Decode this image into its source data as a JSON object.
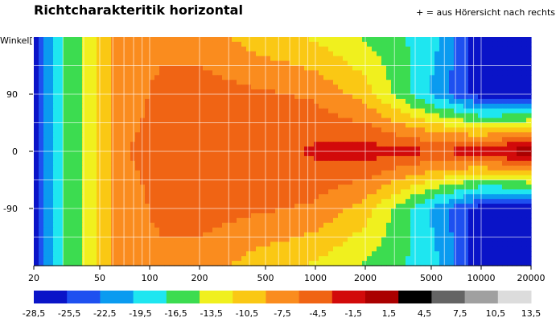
{
  "chart_data": {
    "type": "heatmap",
    "title": "Richtcharakteritik horizontal",
    "note": "+ = aus Hörersicht nach rechts",
    "ylabel": "Winkel[°]",
    "x_scale": "log",
    "xlim": [
      20,
      20000
    ],
    "ylim": [
      -180,
      180
    ],
    "x_ticks": [
      "20",
      "50",
      "100",
      "200",
      "500",
      "1000",
      "2000",
      "5000",
      "10000",
      "20000"
    ],
    "y_ticks": [
      "90",
      "0",
      "-90"
    ],
    "colorbar": {
      "labels": [
        "-28,5",
        "-25,5",
        "-22,5",
        "-19,5",
        "-16,5",
        "-13,5",
        "-10,5",
        "-7,5",
        "-4,5",
        "-1,5",
        "1,5",
        "4,5",
        "7,5",
        "10,5",
        "13,5"
      ],
      "colors": [
        "#0a14c8",
        "#1e50f0",
        "#0a9bf0",
        "#1ee6f0",
        "#3cdc50",
        "#f0f01e",
        "#fac814",
        "#fa8c1e",
        "#f06414",
        "#d20a0a",
        "#aa0000",
        "#000000",
        "#646464",
        "#a0a0a0",
        "#dcdcdc"
      ]
    },
    "levels_db": [
      {
        "hz": 20,
        "by_angle": {
          "0": -28,
          "90": -28,
          "180": -28
        }
      },
      {
        "hz": 23,
        "by_angle": {
          "0": -22,
          "90": -22,
          "180": -22
        }
      },
      {
        "hz": 26,
        "by_angle": {
          "0": -19,
          "90": -19,
          "180": -19
        }
      },
      {
        "hz": 32,
        "by_angle": {
          "0": -16,
          "90": -16,
          "180": -16
        }
      },
      {
        "hz": 40,
        "by_angle": {
          "0": -13,
          "90": -13,
          "180": -13
        }
      },
      {
        "hz": 50,
        "by_angle": {
          "0": -10,
          "90": -10,
          "180": -10
        }
      },
      {
        "hz": 62,
        "by_angle": {
          "0": -7,
          "90": -7,
          "180": -7
        }
      },
      {
        "hz": 80,
        "by_angle": {
          "0": -4,
          "90": -6,
          "180": -6
        }
      },
      {
        "hz": 120,
        "by_angle": {
          "0": -3,
          "90": -3,
          "180": -6
        }
      },
      {
        "hz": 200,
        "by_angle": {
          "0": -3,
          "90": -3,
          "180": -6
        }
      },
      {
        "hz": 450,
        "by_angle": {
          "0": -3,
          "90": -4,
          "180": -9
        }
      },
      {
        "hz": 1000,
        "by_angle": {
          "0": -1,
          "90": -5,
          "180": -11
        }
      },
      {
        "hz": 2000,
        "by_angle": {
          "0": 0,
          "90": -9,
          "180": -14
        }
      },
      {
        "hz": 5000,
        "by_angle": {
          "0": -1,
          "90": -20,
          "180": -18
        }
      },
      {
        "hz": 10000,
        "by_angle": {
          "0": 0,
          "90": -27,
          "180": -28
        }
      },
      {
        "hz": 20000,
        "by_angle": {
          "0": 4,
          "90": -28,
          "180": -28
        }
      }
    ]
  }
}
